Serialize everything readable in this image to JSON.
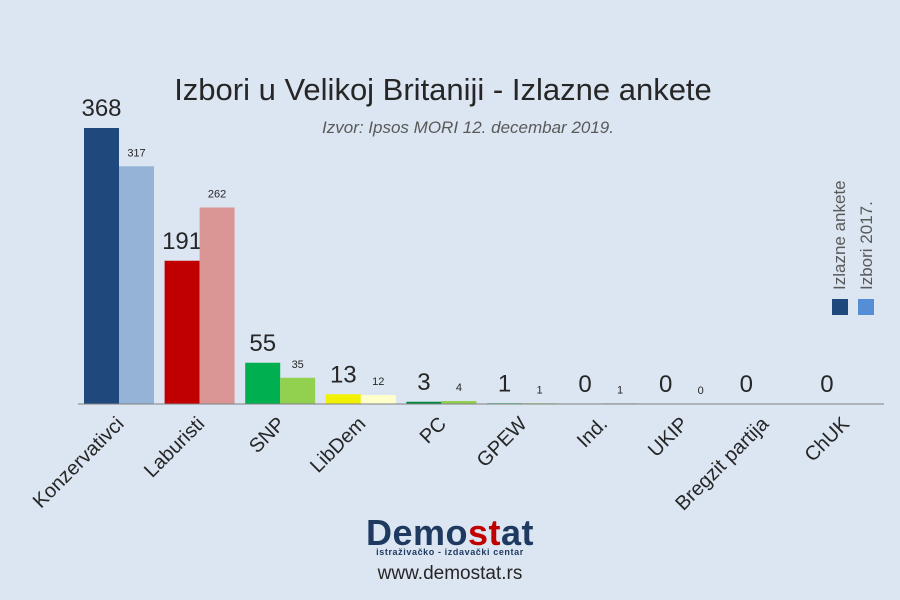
{
  "chart_data": {
    "type": "bar",
    "title": "Izbori u Velikoj Britaniji - Izlazne ankete",
    "subtitle": "Izvor: Ipsos MORI 12. decembar 2019.",
    "categories": [
      "Konzervativci",
      "Laburisti",
      "SNP",
      "LibDem",
      "PC",
      "GPEW",
      "Ind.",
      "UKIP",
      "Bregzit partija",
      "ChUK"
    ],
    "series": [
      {
        "name": "Izlazne ankete",
        "values": [
          368,
          191,
          55,
          13,
          3,
          1,
          0,
          0,
          0,
          0
        ]
      },
      {
        "name": "Izbori 2017.",
        "values": [
          317,
          262,
          35,
          12,
          4,
          1,
          1,
          0,
          null,
          null
        ]
      }
    ],
    "colors": {
      "exit_poll": [
        "#1f497d",
        "#c00000",
        "#00b050",
        "#f2f200",
        "#008a3e",
        "#00b050",
        "#7f7f7f",
        "#7030a0",
        "#00b0f0",
        "#404040"
      ],
      "election_2017": [
        "#95b3d7",
        "#da9694",
        "#92d050",
        "#ffffcc",
        "#92d050",
        "#92d050",
        "#bfbfbf",
        "#b4a7d6",
        "#9bd7f0",
        "#a6a6a6"
      ],
      "legend_exit_poll": "#1f497d",
      "legend_2017": "#558ed5"
    },
    "ylim": [
      0,
      400
    ],
    "legend_position": "right, vertical",
    "grid": false
  },
  "branding": {
    "name_prefix": "Demo",
    "name_accent": "st",
    "name_suffix": "at",
    "tagline": "istraživačko - izdavački  centar",
    "website": "www.demostat.rs"
  }
}
